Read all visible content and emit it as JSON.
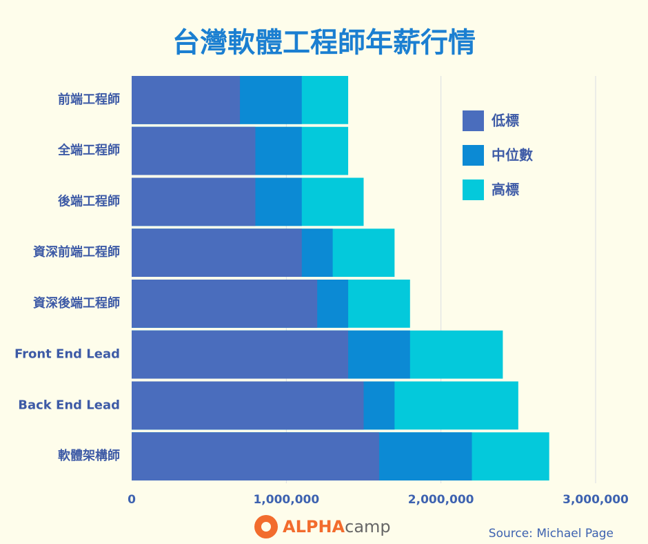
{
  "chart_data": {
    "type": "bar",
    "orientation": "horizontal",
    "overlap": true,
    "title": "台灣軟體工程師年薪行情",
    "categories": [
      "前端工程師",
      "全端工程師",
      "後端工程師",
      "資深前端工程師",
      "資深後端工程師",
      "Front End Lead",
      "Back End Lead",
      "軟體架構師"
    ],
    "series": [
      {
        "name": "低標",
        "color": "#4a6dbd",
        "values": [
          700000,
          800000,
          800000,
          1100000,
          1200000,
          1400000,
          1500000,
          1600000
        ]
      },
      {
        "name": "中位數",
        "color": "#0c8ad4",
        "values": [
          1100000,
          1100000,
          1100000,
          1300000,
          1400000,
          1800000,
          1700000,
          2200000
        ]
      },
      {
        "name": "高標",
        "color": "#04c9db",
        "values": [
          1400000,
          1400000,
          1500000,
          1700000,
          1800000,
          2400000,
          2500000,
          2700000
        ]
      }
    ],
    "xlim": [
      0,
      3000000
    ],
    "xticks": [
      0,
      {
        "value": 1000000,
        "label": "1,000,000"
      },
      {
        "value": 2000000,
        "label": "2,000,000"
      },
      {
        "value": 3000000,
        "label": "3,000,000"
      }
    ],
    "grid": true,
    "legend": "upper right",
    "logo": [
      "ALPHA",
      "camp"
    ],
    "source": "Source: Michael Page"
  }
}
